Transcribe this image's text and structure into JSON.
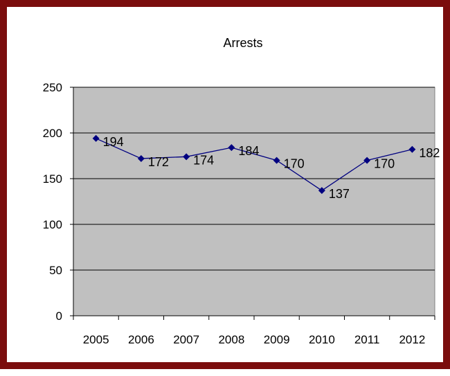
{
  "chart_data": {
    "type": "line",
    "title": "Arrests",
    "xlabel": "",
    "ylabel": "",
    "categories": [
      "2005",
      "2006",
      "2007",
      "2008",
      "2009",
      "2010",
      "2011",
      "2012"
    ],
    "series": [
      {
        "values": [
          194,
          172,
          174,
          184,
          170,
          137,
          170,
          182
        ]
      }
    ],
    "ylim": [
      0,
      250
    ],
    "yticks": [
      0,
      50,
      100,
      150,
      200,
      250
    ],
    "data_labels": true,
    "marker": "diamond",
    "grid": true,
    "legend": "none",
    "colors": {
      "frame": "#7b0d0d",
      "plot_background": "#c0c0c0",
      "series_line": "#000080",
      "gridline": "#000000"
    }
  }
}
